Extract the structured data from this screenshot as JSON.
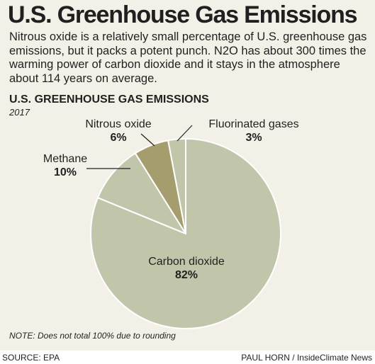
{
  "headline": "U.S. Greenhouse Gas Emissions",
  "intro": "Nitrous oxide is a relatively small percentage of U.S. greenhouse gas emissions, but it packs a potent punch. N2O has about 300 times the warming power of carbon dioxide and it stays in the atmosphere about 114 years on average.",
  "chart_data": {
    "type": "pie",
    "title": "U.S. GREENHOUSE GAS EMISSIONS",
    "subtitle": "2017",
    "slices": [
      {
        "label": "Carbon dioxide",
        "value": 82,
        "display": "82%",
        "color": "#c1c5aa"
      },
      {
        "label": "Methane",
        "value": 10,
        "display": "10%",
        "color": "#c1c5aa"
      },
      {
        "label": "Nitrous oxide",
        "value": 6,
        "display": "6%",
        "color": "#a69d6f"
      },
      {
        "label": "Fluorinated gases",
        "value": 3,
        "display": "3%",
        "color": "#c1c5aa"
      }
    ],
    "note": "NOTE: Does not total 100% due to rounding"
  },
  "footer": {
    "source": "SOURCE: EPA",
    "credit": "PAUL HORN / InsideClimate News"
  },
  "colors": {
    "background": "#f3f1e7",
    "slice_default": "#c1c5aa",
    "slice_highlight": "#a69d6f",
    "separator": "#ffffff"
  }
}
